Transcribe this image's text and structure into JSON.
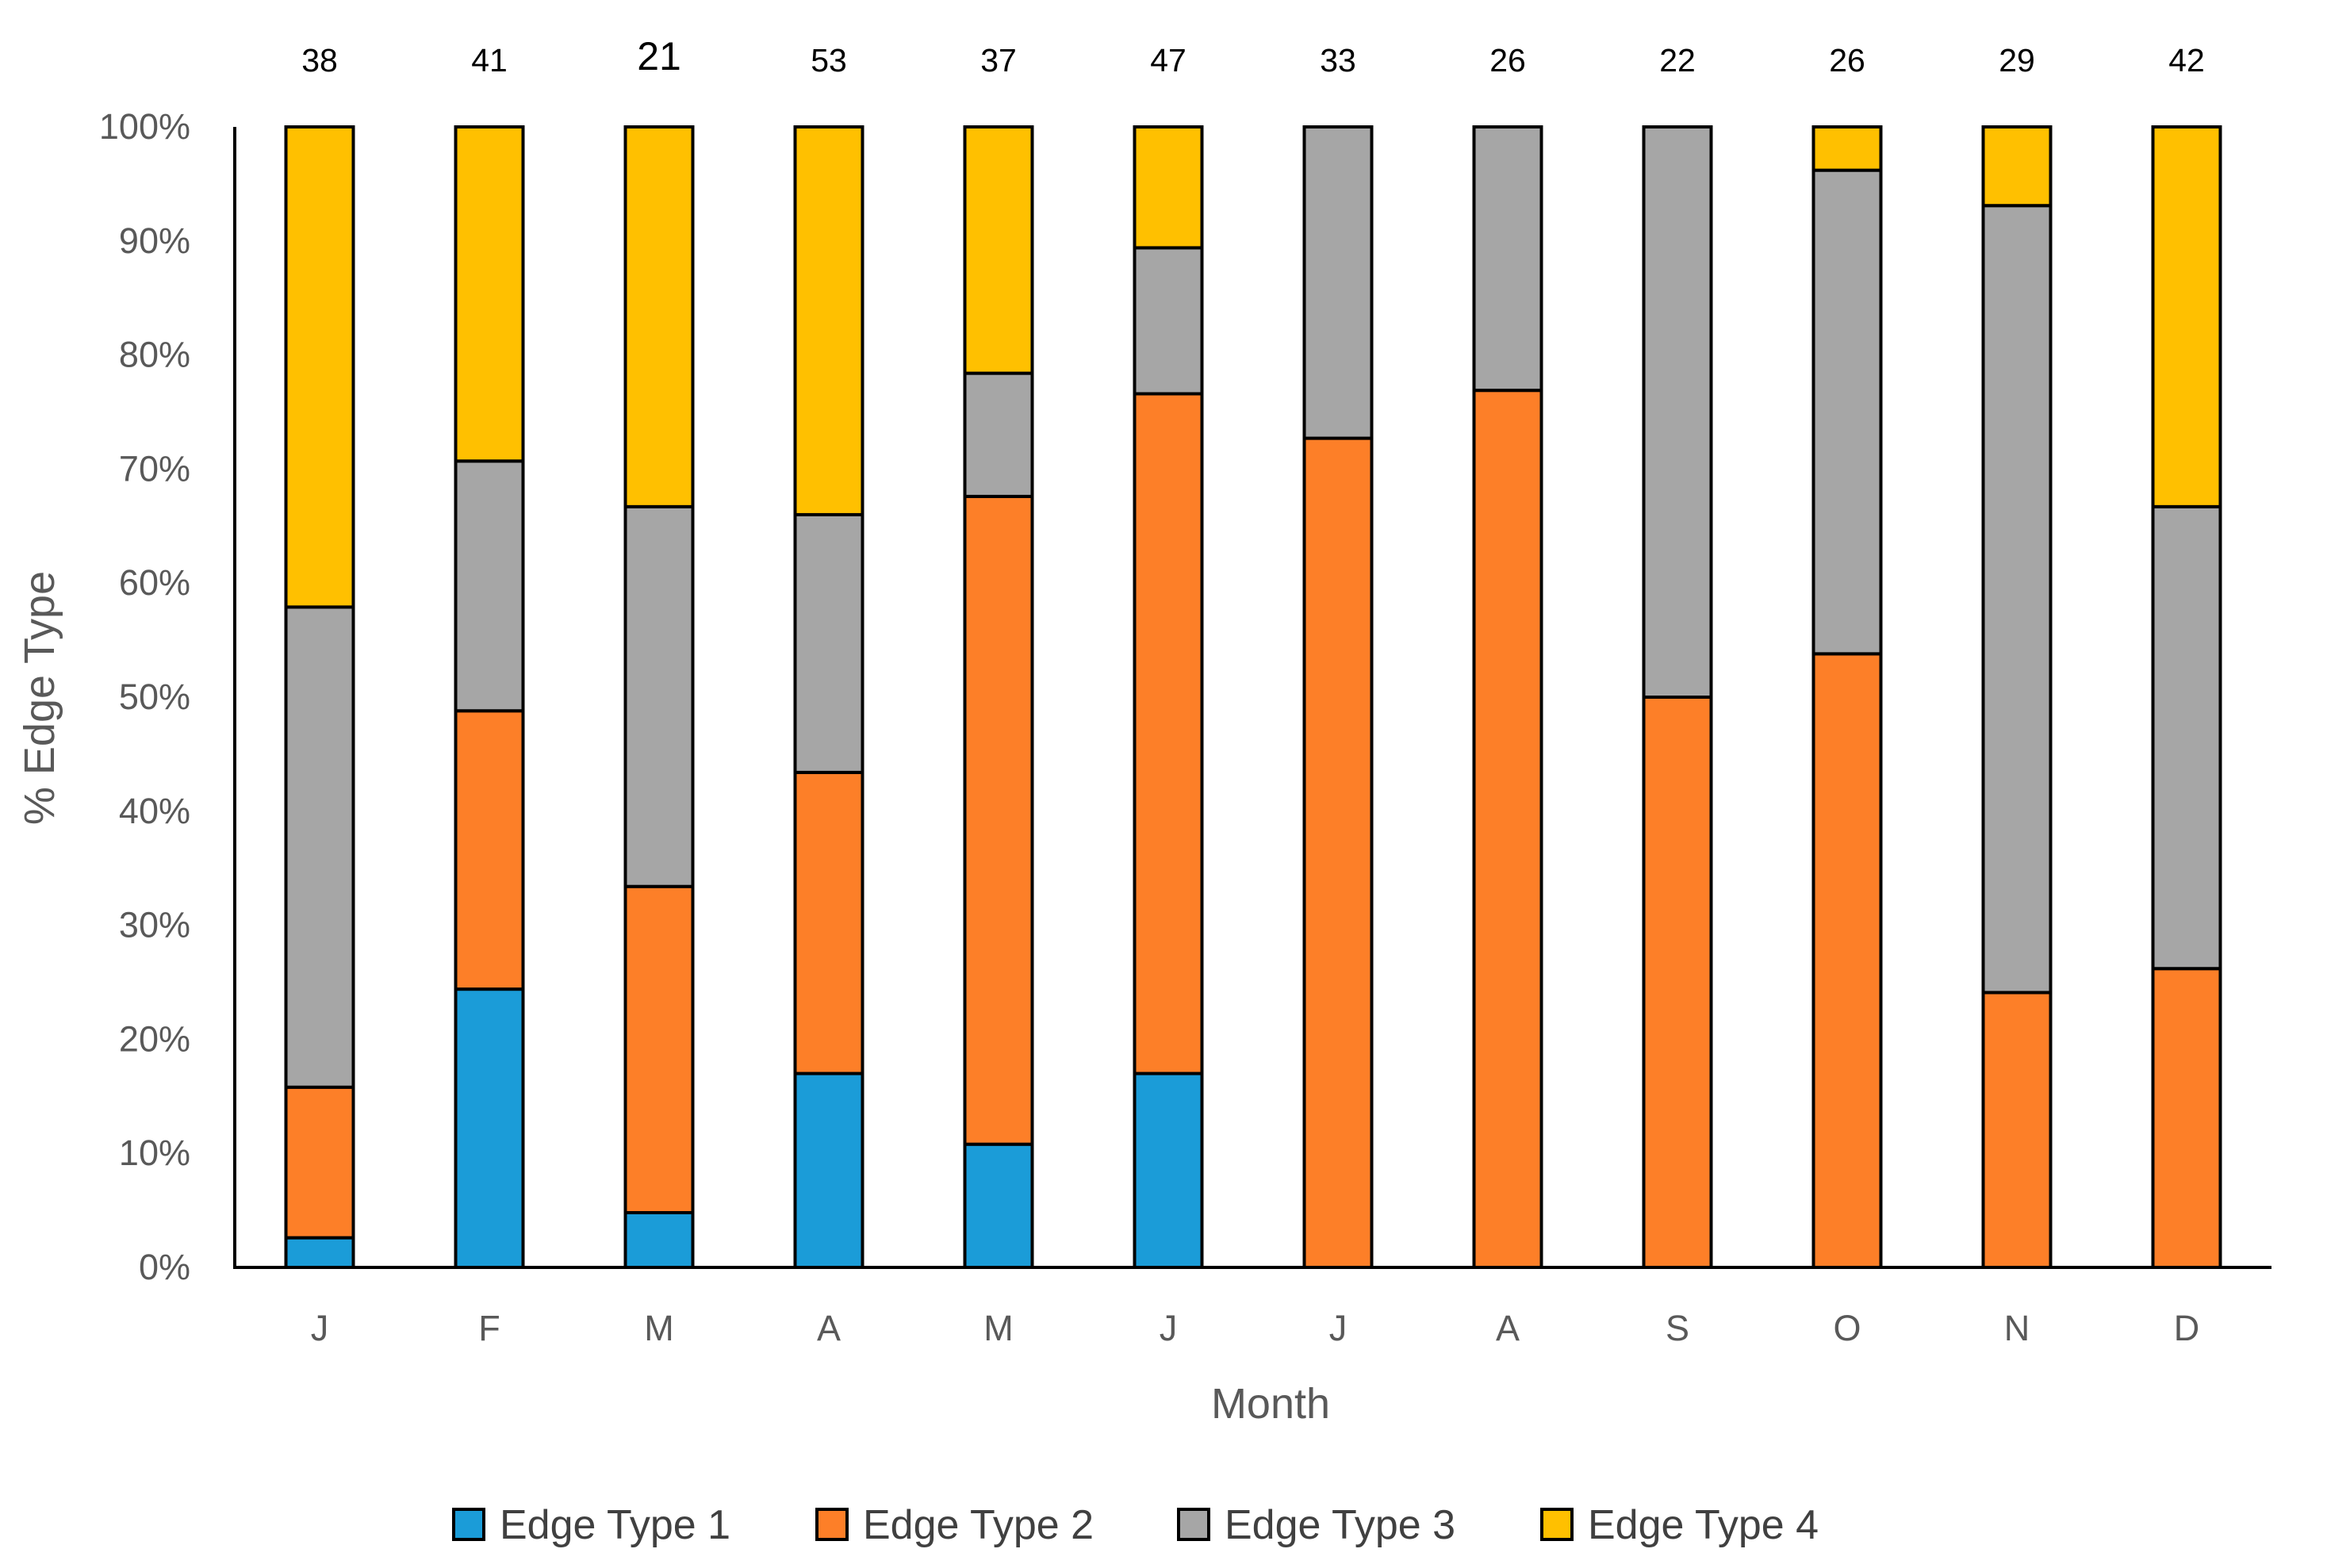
{
  "chart_data": {
    "type": "bar",
    "stacked": true,
    "percent": true,
    "categories": [
      "J",
      "F",
      "M",
      "A",
      "M",
      "J",
      "J",
      "A",
      "S",
      "O",
      "N",
      "D"
    ],
    "sample_sizes": [
      "38",
      "41",
      "21",
      "53",
      "37",
      "47",
      "33",
      "26",
      "22",
      "26",
      "29",
      "42"
    ],
    "series": [
      {
        "name": "Edge Type 1",
        "color": "#1b9cd8",
        "values": [
          2.6,
          24.4,
          4.8,
          17.0,
          10.8,
          17.0,
          0,
          0,
          0,
          0,
          0,
          0
        ]
      },
      {
        "name": "Edge Type 2",
        "color": "#fd7f28",
        "values": [
          13.2,
          24.4,
          28.6,
          26.4,
          56.8,
          59.6,
          72.7,
          76.9,
          50.0,
          53.8,
          24.1,
          26.2
        ]
      },
      {
        "name": "Edge Type 3",
        "color": "#a6a6a6",
        "values": [
          42.1,
          21.9,
          33.3,
          22.6,
          10.8,
          12.8,
          27.3,
          23.1,
          50.0,
          42.4,
          69.0,
          40.5
        ]
      },
      {
        "name": "Edge Type 4",
        "color": "#ffc000",
        "values": [
          42.1,
          29.3,
          33.3,
          34.0,
          21.6,
          10.6,
          0,
          0,
          0,
          3.8,
          6.9,
          33.3
        ]
      }
    ],
    "title": "",
    "xlabel": "Month",
    "ylabel": "% Edge Type",
    "ylim": [
      0,
      100
    ],
    "yticks": [
      "0%",
      "10%",
      "20%",
      "30%",
      "40%",
      "50%",
      "60%",
      "70%",
      "80%",
      "90%",
      "100%"
    ],
    "legend_position": "bottom",
    "grid": false
  }
}
